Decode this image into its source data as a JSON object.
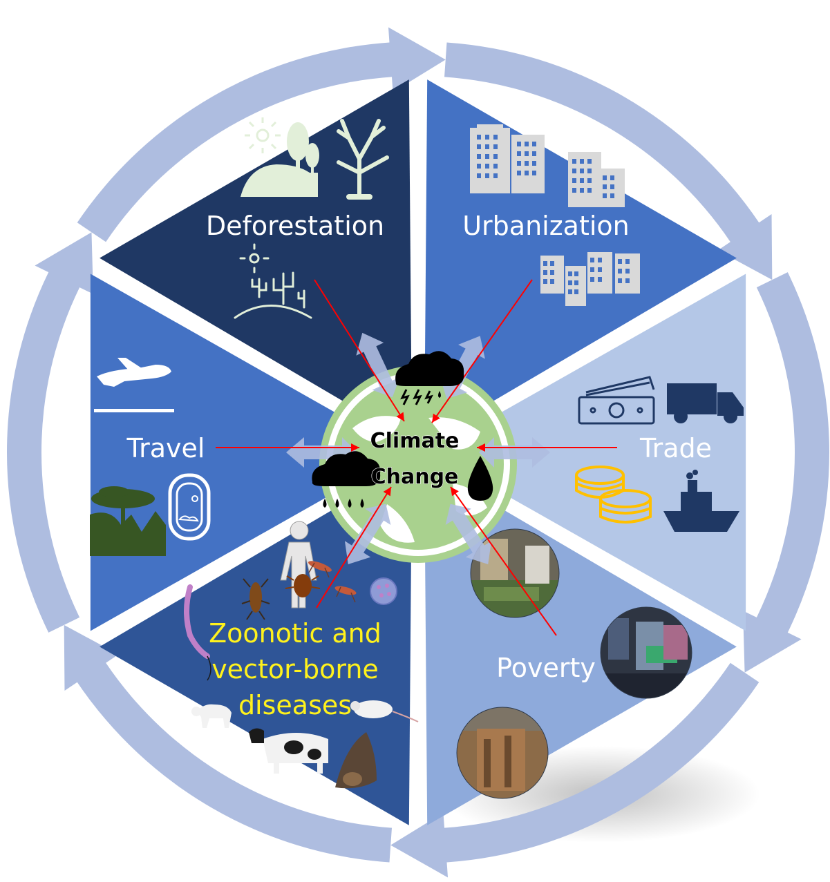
{
  "center": {
    "line1": "Climate",
    "line2": "Change"
  },
  "segments": {
    "deforestation": "Deforestation",
    "urbanization": "Urbanization",
    "trade": "Trade",
    "poverty": "Poverty",
    "zoonotic": {
      "line1": "Zoonotic and",
      "line2": "vector-borne",
      "line3": "diseases"
    },
    "travel": "Travel"
  },
  "colors": {
    "ring": "#aebde0",
    "deforestation": "#1f3864",
    "urbanization": "#4472c4",
    "trade": "#b4c7e7",
    "poverty": "#8eaadb",
    "zoonotic": "#2f5597",
    "travel": "#4472c4",
    "globe_land": "#a9d18e",
    "arrow_red": "#ff0000",
    "zoonotic_label": "#fff21c"
  },
  "icons": {
    "deforestation": [
      "sun-icon",
      "trees-hills-icon",
      "dead-tree-icon",
      "desert-cactus-icon"
    ],
    "urbanization": [
      "buildings-icon",
      "buildings-small-icon",
      "city-row-icon"
    ],
    "trade": [
      "money-icon",
      "truck-icon",
      "coins-icon",
      "ship-icon"
    ],
    "poverty": [
      "slum-photo-1",
      "slum-photo-2",
      "slum-photo-3"
    ],
    "zoonotic": [
      "human-figure-icon",
      "tick-icon",
      "mosquito-icon",
      "bug-icon",
      "virus-icon",
      "parasite-icon",
      "cat-icon",
      "mouse-icon",
      "cow-icon",
      "bat-icon"
    ],
    "travel": [
      "airplane-icon",
      "tree-landscape-icon",
      "window-icon"
    ],
    "center": [
      "globe-icon",
      "storm-cloud-icon",
      "rain-cloud-icon",
      "water-drop-icon"
    ]
  }
}
